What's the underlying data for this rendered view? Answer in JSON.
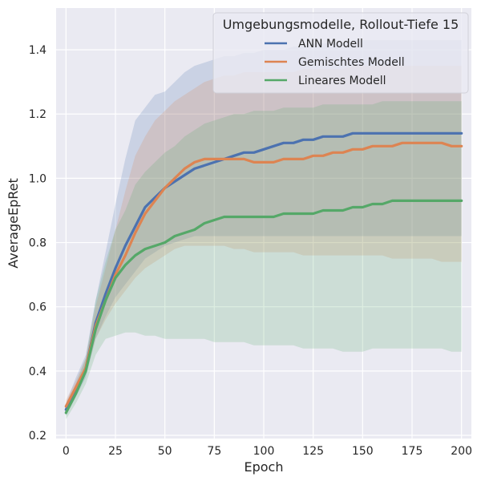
{
  "chart_data": {
    "type": "line",
    "title": "",
    "xlabel": "Epoch",
    "ylabel": "AverageEpRet",
    "xlim": [
      -5,
      205
    ],
    "ylim": [
      0.19,
      1.53
    ],
    "xticks": [
      0,
      25,
      50,
      75,
      100,
      125,
      150,
      175,
      200
    ],
    "yticks": [
      0.2,
      0.4,
      0.6,
      0.8,
      1.0,
      1.2,
      1.4
    ],
    "xtick_labels": [
      "0",
      "25",
      "50",
      "75",
      "100",
      "125",
      "150",
      "175",
      "200"
    ],
    "ytick_labels": [
      "0.2",
      "0.4",
      "0.6",
      "0.8",
      "1.0",
      "1.2",
      "1.4"
    ],
    "grid": true,
    "legend": {
      "title": "Umgebungsmodelle, Rollout-Tiefe 15",
      "placement": "top-right"
    },
    "x": [
      0,
      5,
      10,
      15,
      20,
      25,
      30,
      35,
      40,
      45,
      50,
      55,
      60,
      65,
      70,
      75,
      80,
      85,
      90,
      95,
      100,
      105,
      110,
      115,
      120,
      125,
      130,
      135,
      140,
      145,
      150,
      155,
      160,
      165,
      170,
      175,
      180,
      185,
      190,
      195,
      200
    ],
    "series": [
      {
        "name": "ANN Modell",
        "color": "#4c72b0",
        "values": [
          0.28,
          0.34,
          0.41,
          0.55,
          0.64,
          0.72,
          0.79,
          0.85,
          0.91,
          0.94,
          0.97,
          0.99,
          1.01,
          1.03,
          1.04,
          1.05,
          1.06,
          1.07,
          1.08,
          1.08,
          1.09,
          1.1,
          1.11,
          1.11,
          1.12,
          1.12,
          1.13,
          1.13,
          1.13,
          1.14,
          1.14,
          1.14,
          1.14,
          1.14,
          1.14,
          1.14,
          1.14,
          1.14,
          1.14,
          1.14,
          1.14
        ],
        "lower": [
          0.26,
          0.32,
          0.38,
          0.5,
          0.57,
          0.63,
          0.67,
          0.71,
          0.75,
          0.77,
          0.79,
          0.8,
          0.81,
          0.82,
          0.82,
          0.82,
          0.82,
          0.82,
          0.82,
          0.82,
          0.82,
          0.82,
          0.82,
          0.82,
          0.82,
          0.82,
          0.82,
          0.82,
          0.82,
          0.82,
          0.82,
          0.82,
          0.82,
          0.82,
          0.82,
          0.82,
          0.82,
          0.82,
          0.82,
          0.82,
          0.82
        ],
        "upper": [
          0.3,
          0.38,
          0.45,
          0.62,
          0.77,
          0.92,
          1.06,
          1.18,
          1.22,
          1.26,
          1.27,
          1.3,
          1.33,
          1.35,
          1.36,
          1.37,
          1.38,
          1.38,
          1.39,
          1.39,
          1.4,
          1.4,
          1.4,
          1.41,
          1.41,
          1.42,
          1.42,
          1.42,
          1.42,
          1.43,
          1.43,
          1.43,
          1.43,
          1.43,
          1.43,
          1.43,
          1.43,
          1.43,
          1.43,
          1.43,
          1.43
        ]
      },
      {
        "name": "Gemischtes Modell",
        "color": "#dd8452",
        "values": [
          0.29,
          0.35,
          0.41,
          0.54,
          0.62,
          0.7,
          0.76,
          0.83,
          0.89,
          0.93,
          0.97,
          1.0,
          1.03,
          1.05,
          1.06,
          1.06,
          1.06,
          1.06,
          1.06,
          1.05,
          1.05,
          1.05,
          1.06,
          1.06,
          1.06,
          1.07,
          1.07,
          1.08,
          1.08,
          1.09,
          1.09,
          1.1,
          1.1,
          1.1,
          1.11,
          1.11,
          1.11,
          1.11,
          1.11,
          1.1,
          1.1
        ],
        "lower": [
          0.27,
          0.33,
          0.39,
          0.5,
          0.56,
          0.61,
          0.65,
          0.69,
          0.72,
          0.74,
          0.76,
          0.78,
          0.79,
          0.79,
          0.79,
          0.79,
          0.79,
          0.78,
          0.78,
          0.77,
          0.77,
          0.77,
          0.77,
          0.77,
          0.76,
          0.76,
          0.76,
          0.76,
          0.76,
          0.76,
          0.76,
          0.76,
          0.76,
          0.75,
          0.75,
          0.75,
          0.75,
          0.75,
          0.74,
          0.74,
          0.74
        ],
        "upper": [
          0.31,
          0.37,
          0.44,
          0.6,
          0.72,
          0.84,
          0.96,
          1.07,
          1.13,
          1.18,
          1.21,
          1.24,
          1.26,
          1.28,
          1.3,
          1.31,
          1.32,
          1.32,
          1.33,
          1.33,
          1.33,
          1.33,
          1.33,
          1.33,
          1.34,
          1.34,
          1.34,
          1.34,
          1.34,
          1.35,
          1.35,
          1.35,
          1.35,
          1.35,
          1.35,
          1.35,
          1.35,
          1.35,
          1.35,
          1.35,
          1.35
        ]
      },
      {
        "name": "Lineares Modell",
        "color": "#55a868",
        "values": [
          0.27,
          0.33,
          0.4,
          0.53,
          0.62,
          0.69,
          0.73,
          0.76,
          0.78,
          0.79,
          0.8,
          0.82,
          0.83,
          0.84,
          0.86,
          0.87,
          0.88,
          0.88,
          0.88,
          0.88,
          0.88,
          0.88,
          0.89,
          0.89,
          0.89,
          0.89,
          0.9,
          0.9,
          0.9,
          0.91,
          0.91,
          0.92,
          0.92,
          0.93,
          0.93,
          0.93,
          0.93,
          0.93,
          0.93,
          0.93,
          0.93
        ],
        "lower": [
          0.25,
          0.3,
          0.36,
          0.45,
          0.5,
          0.51,
          0.52,
          0.52,
          0.51,
          0.51,
          0.5,
          0.5,
          0.5,
          0.5,
          0.5,
          0.49,
          0.49,
          0.49,
          0.49,
          0.48,
          0.48,
          0.48,
          0.48,
          0.48,
          0.47,
          0.47,
          0.47,
          0.47,
          0.46,
          0.46,
          0.46,
          0.47,
          0.47,
          0.47,
          0.47,
          0.47,
          0.47,
          0.47,
          0.47,
          0.46,
          0.46
        ],
        "upper": [
          0.29,
          0.36,
          0.44,
          0.62,
          0.74,
          0.84,
          0.9,
          0.98,
          1.02,
          1.05,
          1.08,
          1.1,
          1.13,
          1.15,
          1.17,
          1.18,
          1.19,
          1.2,
          1.2,
          1.21,
          1.21,
          1.21,
          1.22,
          1.22,
          1.22,
          1.22,
          1.23,
          1.23,
          1.23,
          1.23,
          1.23,
          1.23,
          1.24,
          1.24,
          1.24,
          1.24,
          1.24,
          1.24,
          1.24,
          1.24,
          1.24
        ]
      }
    ]
  }
}
